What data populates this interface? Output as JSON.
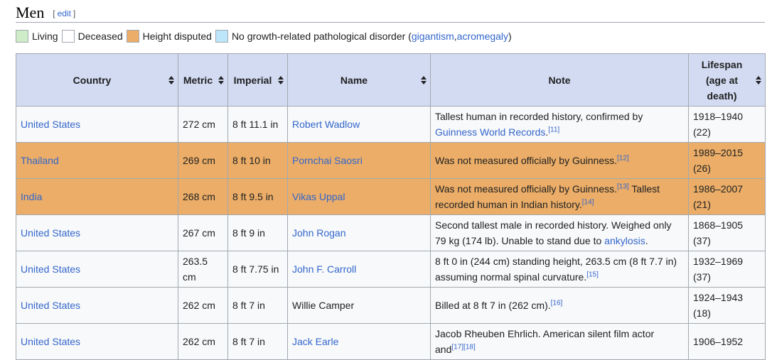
{
  "heading": {
    "title": "Men",
    "edit_open": "[",
    "edit_label": "edit",
    "edit_close": "]"
  },
  "legend": {
    "items": [
      {
        "label": "Living",
        "color": "#cfecc8"
      },
      {
        "label": "Deceased",
        "color": "#ffffff"
      },
      {
        "label": "Height disputed",
        "color": "#ebad67"
      },
      {
        "label": "No growth-related pathological disorder (",
        "color": "#bee6fa"
      }
    ],
    "link1": "gigantism",
    "sep": ", ",
    "link2": "acromegaly",
    "tail": ")"
  },
  "table": {
    "headers": {
      "country": "Country",
      "metric": "Metric",
      "imperial": "Imperial",
      "name": "Name",
      "note": "Note",
      "lifespan": "Lifespan (age at death)"
    },
    "rows": [
      {
        "country": "United States",
        "metric": "272 cm",
        "imperial": "8 ft 11.1 in",
        "name": "Robert Wadlow",
        "name_link": true,
        "note_a": "Tallest human in recorded history, confirmed by ",
        "note_link": "Guinness World Records",
        "note_b": ".",
        "ref1": "[11]",
        "note_c": "",
        "ref2": "",
        "years": "1918–1940",
        "age": "(22)",
        "status": "deceased"
      },
      {
        "country": "Thailand",
        "metric": "269 cm",
        "imperial": "8 ft 10 in",
        "name": "Pornchai Saosri",
        "name_link": true,
        "note_a": "Was not measured officially by Guinness.",
        "note_link": "",
        "note_b": "",
        "ref1": "[12]",
        "note_c": "",
        "ref2": "",
        "years": "1989–2015",
        "age": "(26)",
        "status": "disputed"
      },
      {
        "country": "India",
        "metric": "268 cm",
        "imperial": "8 ft 9.5 in",
        "name": "Vikas Uppal",
        "name_link": true,
        "note_a": "Was not measured officially by Guinness.",
        "note_link": "",
        "note_b": "",
        "ref1": "[13]",
        "note_c": " Tallest recorded human in Indian history.",
        "ref2": "[14]",
        "years": "1986–2007",
        "age": "(21)",
        "status": "disputed"
      },
      {
        "country": "United States",
        "metric": "267 cm",
        "imperial": "8 ft 9 in",
        "name": "John Rogan",
        "name_link": true,
        "note_a": "Second tallest male in recorded history. Weighed only 79 kg (174 lb). Unable to stand due to ",
        "note_link": "ankylosis",
        "note_b": ".",
        "ref1": "",
        "note_c": "",
        "ref2": "",
        "years": "1868–1905",
        "age": "(37)",
        "status": "deceased"
      },
      {
        "country": "United States",
        "metric": "263.5 cm",
        "imperial": "8 ft 7.75 in",
        "name": "John F. Carroll",
        "name_link": true,
        "note_a": "8 ft 0 in (244 cm) standing height, 263.5 cm (8 ft 7.7 in) assuming normal spinal curvature.",
        "note_link": "",
        "note_b": "",
        "ref1": "[15]",
        "note_c": "",
        "ref2": "",
        "years": "1932–1969",
        "age": "(37)",
        "status": "deceased"
      },
      {
        "country": "United States",
        "metric": "262 cm",
        "imperial": "8 ft 7 in",
        "name": "Willie Camper",
        "name_link": false,
        "note_a": "Billed at 8 ft 7 in (262 cm).",
        "note_link": "",
        "note_b": "",
        "ref1": "[16]",
        "note_c": "",
        "ref2": "",
        "years": "1924–1943",
        "age": "(18)",
        "status": "deceased"
      },
      {
        "country": "United States",
        "metric": "262 cm",
        "imperial": "8 ft 7 in",
        "name": "Jack Earle",
        "name_link": true,
        "note_a": "Jacob Rheuben Ehrlich. American silent film actor and",
        "note_link": "",
        "note_b": "",
        "ref1": "[17][18]",
        "note_c": "",
        "ref2": "",
        "years": "1906–1952",
        "age": "",
        "status": "deceased"
      }
    ]
  }
}
